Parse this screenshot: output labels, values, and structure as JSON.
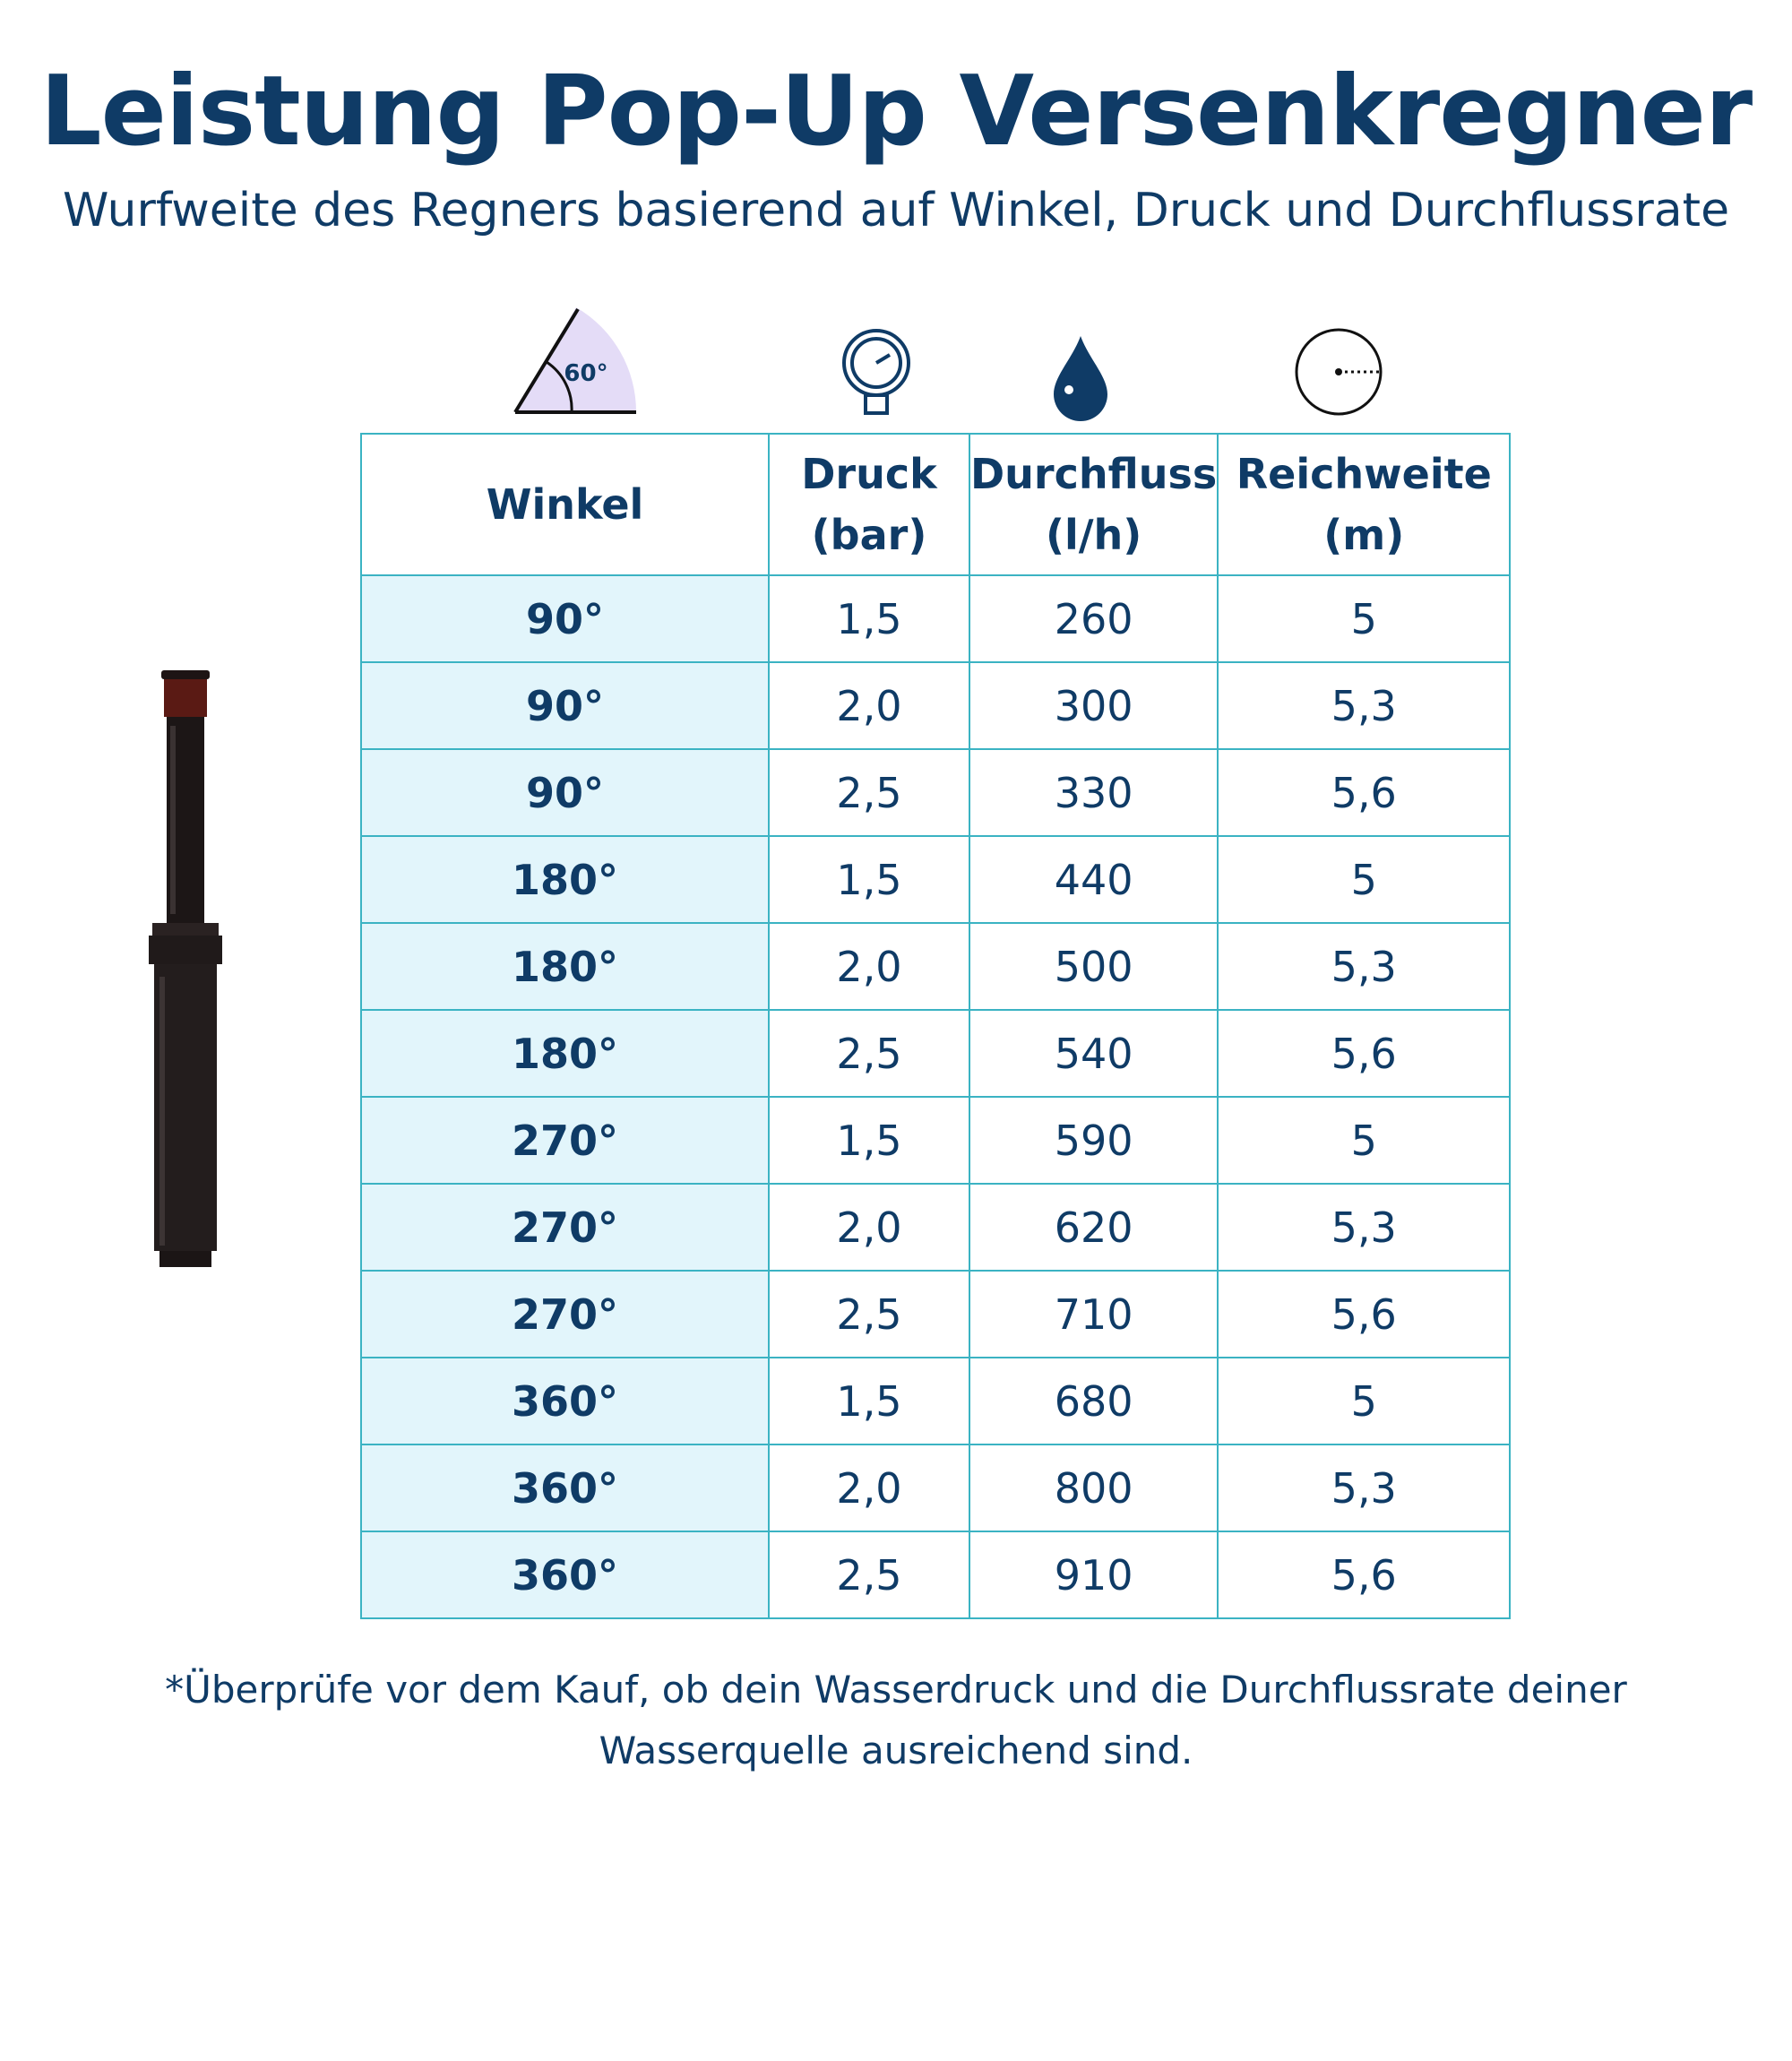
{
  "header": {
    "title": "Leistung Pop-Up Versenkregner",
    "subtitle": "Wurfweite des Regners basierend auf Winkel, Druck und Durchflussrate"
  },
  "icons": {
    "angle_label": "60°"
  },
  "table": {
    "columns": [
      "Winkel",
      "Druck\n(bar)",
      "Durchfluss\n(l/h)",
      "Reichweite\n(m)"
    ],
    "rows": [
      [
        "90°",
        "1,5",
        "260",
        "5"
      ],
      [
        "90°",
        "2,0",
        "300",
        "5,3"
      ],
      [
        "90°",
        "2,5",
        "330",
        "5,6"
      ],
      [
        "180°",
        "1,5",
        "440",
        "5"
      ],
      [
        "180°",
        "2,0",
        "500",
        "5,3"
      ],
      [
        "180°",
        "2,5",
        "540",
        "5,6"
      ],
      [
        "270°",
        "1,5",
        "590",
        "5"
      ],
      [
        "270°",
        "2,0",
        "620",
        "5,3"
      ],
      [
        "270°",
        "2,5",
        "710",
        "5,6"
      ],
      [
        "360°",
        "1,5",
        "680",
        "5"
      ],
      [
        "360°",
        "2,0",
        "800",
        "5,3"
      ],
      [
        "360°",
        "2,5",
        "910",
        "5,6"
      ]
    ]
  },
  "footnote": "*Überprüfe vor dem Kauf, ob dein Wasserdruck und die Durchflussrate deiner Wasserquelle ausreichend sind."
}
